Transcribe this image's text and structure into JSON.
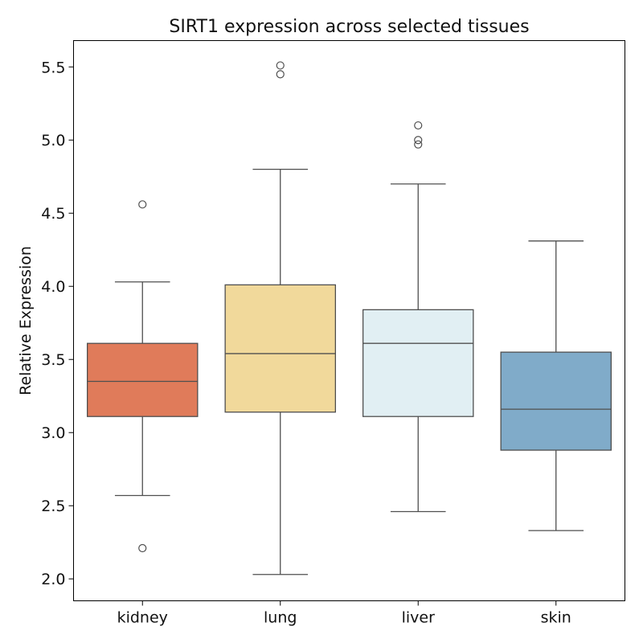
{
  "chart_data": {
    "type": "box",
    "title": "SIRT1 expression across selected tissues",
    "xlabel": "",
    "ylabel": "Relative Expression",
    "ylim": [
      1.85,
      5.68
    ],
    "yticks": [
      2.0,
      2.5,
      3.0,
      3.5,
      4.0,
      4.5,
      5.0,
      5.5
    ],
    "ytick_labels": [
      "2.0",
      "2.5",
      "3.0",
      "3.5",
      "4.0",
      "4.5",
      "5.0",
      "5.5"
    ],
    "grid": false,
    "categories": [
      "kidney",
      "lung",
      "liver",
      "skin"
    ],
    "boxes": [
      {
        "category": "kidney",
        "whisker_low": 2.57,
        "q1": 3.11,
        "median": 3.35,
        "q3": 3.61,
        "whisker_high": 4.03,
        "outliers": [
          4.56,
          2.21
        ],
        "color": "#e07b5a"
      },
      {
        "category": "lung",
        "whisker_low": 2.03,
        "q1": 3.14,
        "median": 3.54,
        "q3": 4.01,
        "whisker_high": 4.8,
        "outliers": [
          5.51,
          5.45
        ],
        "color": "#f1d99b"
      },
      {
        "category": "liver",
        "whisker_low": 2.46,
        "q1": 3.11,
        "median": 3.61,
        "q3": 3.84,
        "whisker_high": 4.7,
        "outliers": [
          5.1,
          5.0,
          4.97
        ],
        "color": "#e1eff3"
      },
      {
        "category": "skin",
        "whisker_low": 2.33,
        "q1": 2.88,
        "median": 3.16,
        "q3": 3.55,
        "whisker_high": 4.31,
        "outliers": [],
        "color": "#80abc9"
      }
    ]
  }
}
